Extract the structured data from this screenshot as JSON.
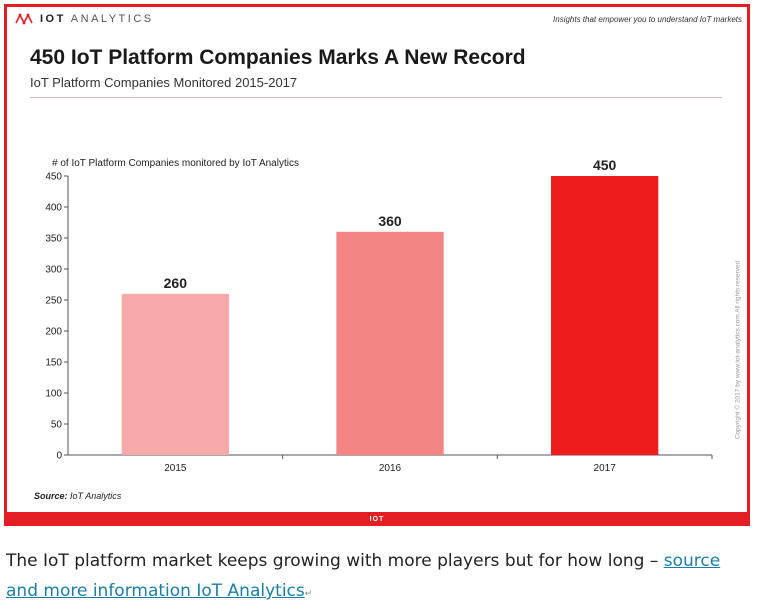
{
  "header": {
    "brand_prefix": "IOT",
    "brand_suffix": "ANALYTICS",
    "tagline": "Insights that empower you to understand IoT markets"
  },
  "chart_data": {
    "type": "bar",
    "title": "450 IoT Platform Companies Marks A New Record",
    "subtitle": "IoT Platform Companies Monitored 2015-2017",
    "ylabel": "# of IoT Platform Companies monitored by IoT Analytics",
    "xlabel": "",
    "categories": [
      "2015",
      "2016",
      "2017"
    ],
    "values": [
      260,
      360,
      450
    ],
    "data_labels": [
      "260",
      "360",
      "450"
    ],
    "colors": [
      "#f8a9a9",
      "#f48585",
      "#ee1c1c"
    ],
    "ylim": [
      0,
      450
    ],
    "yticks": [
      0,
      50,
      100,
      150,
      200,
      250,
      300,
      350,
      400,
      450
    ],
    "grid": false,
    "legend": "none"
  },
  "footer": {
    "source_label": "Source:",
    "source_value": "IoT Analytics",
    "copyright": "Copyright © 2017 by www.iot-analytics.com All rights reserved"
  },
  "caption": {
    "text": "The IoT platform market keeps growing with more players but for how long – ",
    "link_text": "source and more information IoT Analytics",
    "return_mark": "↵"
  }
}
